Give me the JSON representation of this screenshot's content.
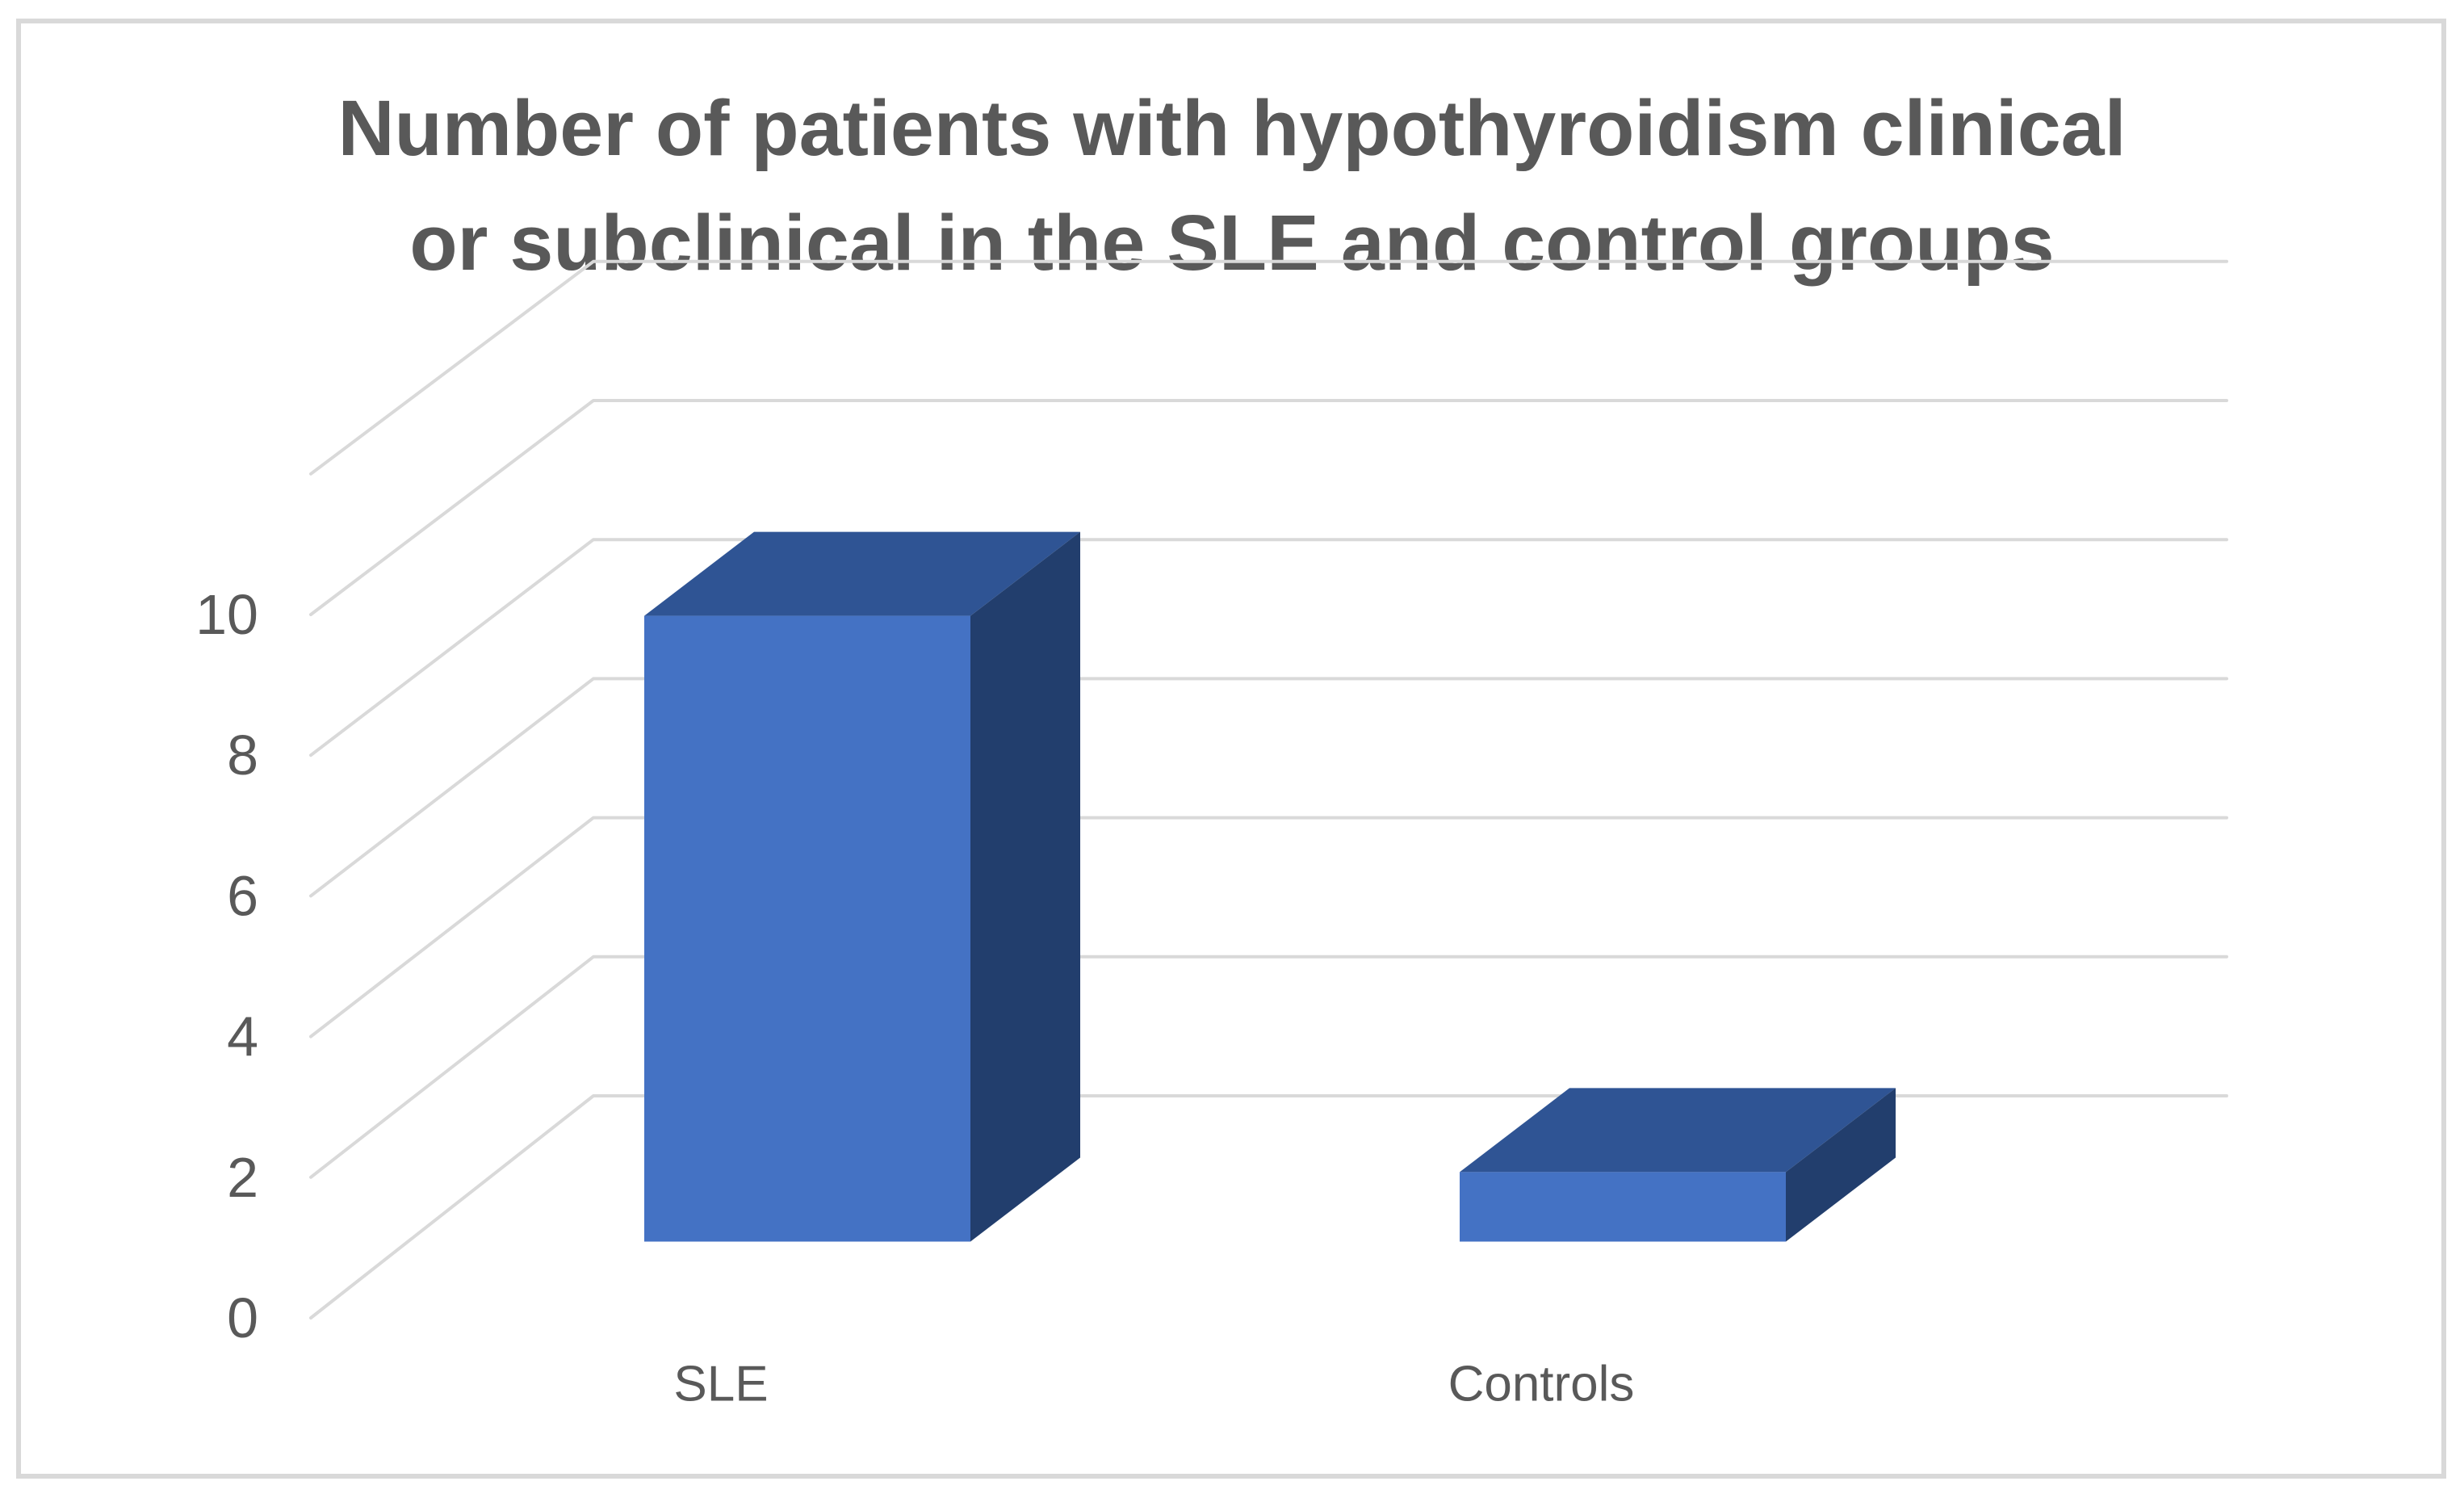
{
  "chart_data": {
    "type": "bar",
    "subtype": "bar3d",
    "title": "Number of patients with hypothyroidism clinical or subclinical in the SLE and control groups",
    "title_lines": [
      "Number of patients with hypothyroidism clinical",
      "or subclinical in the SLE and control groups"
    ],
    "categories": [
      "SLE",
      "Controls"
    ],
    "values": [
      9,
      1
    ],
    "series": [
      {
        "name": "Number of patients",
        "values": [
          9,
          1
        ]
      }
    ],
    "xlabel": "",
    "ylabel": "",
    "ylim": [
      0,
      12
    ],
    "yticks": [
      0,
      2,
      4,
      6,
      8,
      10
    ],
    "gridline_values": [
      0,
      2,
      4,
      6,
      8,
      10,
      12
    ],
    "grid": true,
    "legend_position": "none"
  },
  "colors": {
    "bar_front": "#4472c4",
    "bar_top": "#2f5494",
    "bar_side": "#223e6d",
    "grid": "#d9d9d9",
    "frame": "#d9d9d9",
    "text": "#595959",
    "background": "#ffffff"
  }
}
